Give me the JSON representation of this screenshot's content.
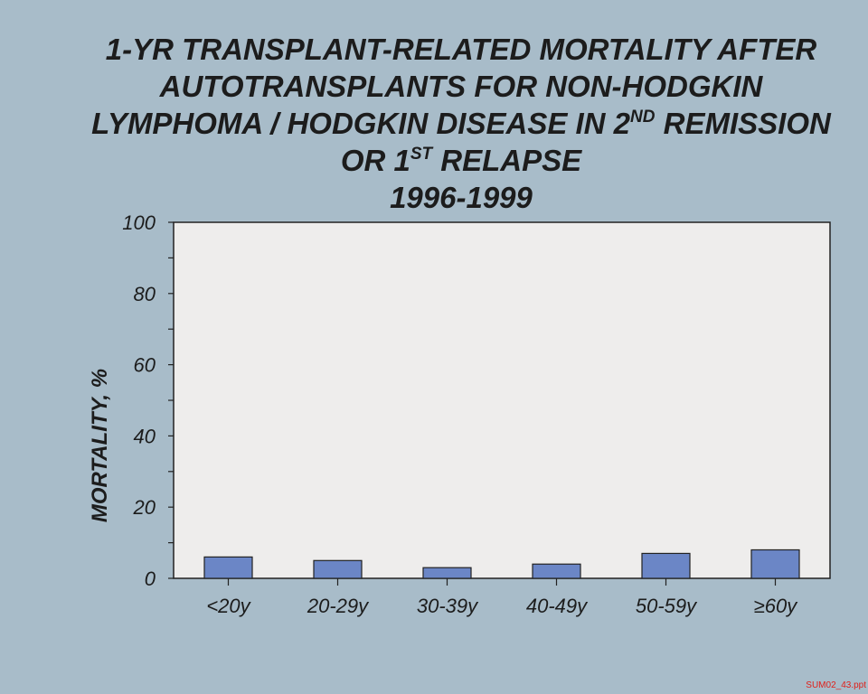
{
  "title": {
    "line1": "1-YR TRANSPLANT-RELATED MORTALITY AFTER",
    "line2": "AUTOTRANSPLANTS FOR NON-HODGKIN",
    "line3_pre": "LYMPHOMA / HODGKIN DISEASE IN 2",
    "line3_sup": "ND",
    "line3_post": " REMISSION",
    "line4_pre": "OR 1",
    "line4_sup": "ST",
    "line4_post": " RELAPSE",
    "line5": "1996-1999"
  },
  "chart_data": {
    "type": "bar",
    "categories": [
      "<20y",
      "20-29y",
      "30-39y",
      "40-49y",
      "50-59y",
      "≥60y"
    ],
    "values": [
      6,
      5,
      3,
      4,
      7,
      8
    ],
    "ylabel": "MORTALITY, %",
    "xlabel": "",
    "ylim": [
      0,
      100
    ],
    "yticks": [
      0,
      20,
      40,
      60,
      80,
      100
    ],
    "grid": false,
    "bar_color": "#6b86c6",
    "plot_background": "#eeedec"
  },
  "footer": "SUM02_43.ppt"
}
